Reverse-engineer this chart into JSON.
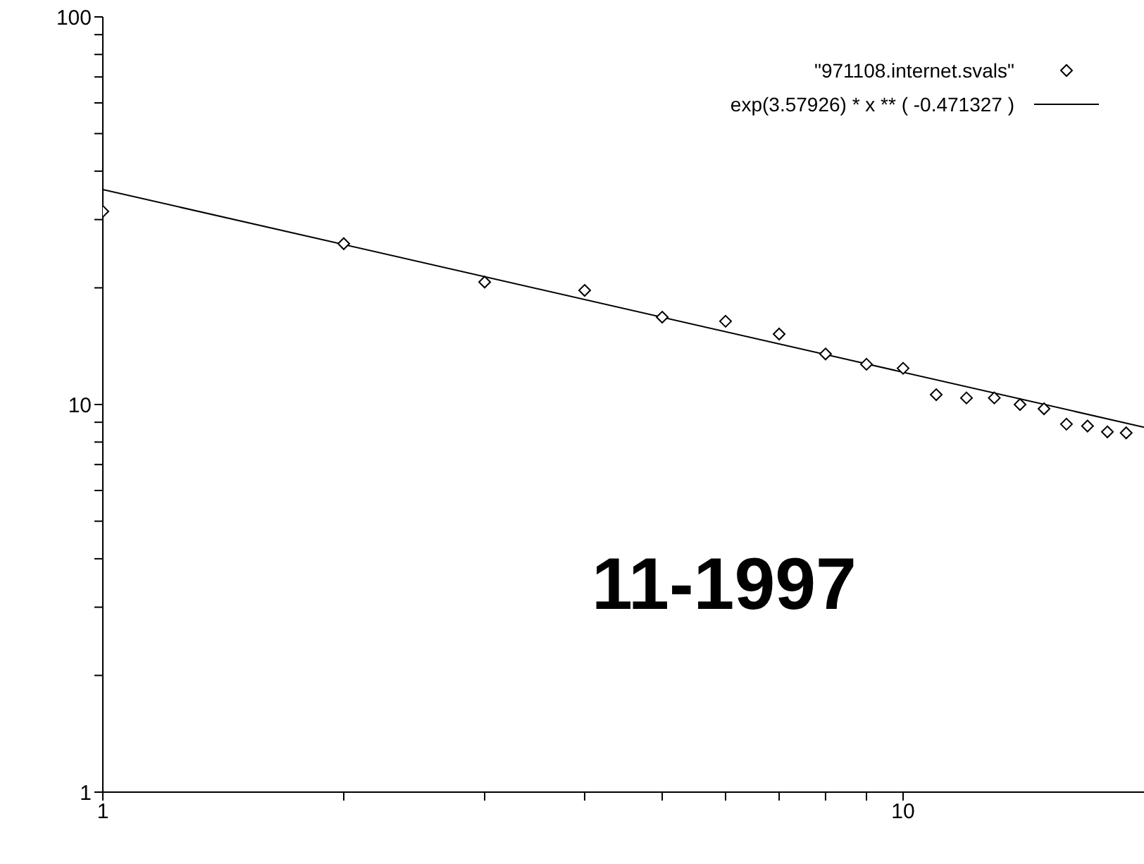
{
  "chart_data": {
    "type": "scatter",
    "log": "xy",
    "legend": "top right",
    "xlim": [
      1,
      20
    ],
    "ylim": [
      1,
      100
    ],
    "xticks": [
      1,
      {
        "value": 2,
        "label": null
      },
      {
        "value": 3,
        "label": null
      },
      {
        "value": 4,
        "label": null
      },
      {
        "value": 5,
        "label": null
      },
      {
        "value": 6,
        "label": null
      },
      {
        "value": 7,
        "label": null
      },
      {
        "value": 8,
        "label": null
      },
      {
        "value": 9,
        "label": null
      },
      10
    ],
    "yticks": [
      1,
      {
        "value": 2,
        "label": null
      },
      {
        "value": 3,
        "label": null
      },
      {
        "value": 4,
        "label": null
      },
      {
        "value": 5,
        "label": null
      },
      {
        "value": 6,
        "label": null
      },
      {
        "value": 7,
        "label": null
      },
      {
        "value": 8,
        "label": null
      },
      {
        "value": 9,
        "label": null
      },
      10,
      {
        "value": 20,
        "label": null
      },
      {
        "value": 30,
        "label": null
      },
      {
        "value": 40,
        "label": null
      },
      {
        "value": 50,
        "label": null
      },
      {
        "value": 60,
        "label": null
      },
      {
        "value": 70,
        "label": null
      },
      {
        "value": 80,
        "label": null
      },
      {
        "value": 90,
        "label": null
      },
      100
    ],
    "series": [
      {
        "name": "\"971108.internet.svals\"",
        "marker": "diamond",
        "color": "#000000",
        "x": [
          1,
          2,
          3,
          4,
          5,
          6,
          7,
          8,
          9,
          10,
          11,
          12,
          13,
          14,
          15,
          16,
          17,
          18,
          19
        ],
        "values": [
          31.5,
          26,
          20.7,
          19.7,
          16.8,
          16.4,
          15.2,
          13.5,
          12.7,
          12.4,
          10.6,
          10.4,
          10.4,
          10,
          9.75,
          8.9,
          8.8,
          8.5,
          8.45
        ]
      },
      {
        "name": "exp(3.57926)  * x ** (  -0.471327 )",
        "type": "line",
        "marker": "none",
        "color": "#000000",
        "x": [
          1,
          20
        ],
        "values": [
          35.86,
          8.74
        ]
      }
    ],
    "annotations": [
      "11-1997"
    ]
  }
}
